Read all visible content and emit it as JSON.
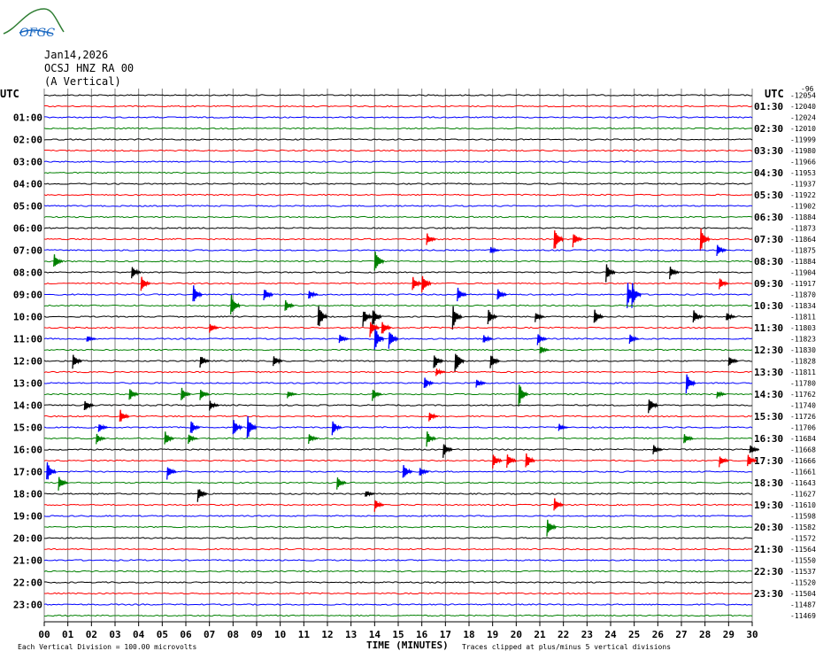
{
  "logo": {
    "text": "OFGC"
  },
  "header": {
    "date": "Jan14,2026",
    "station": "OCSJ HNZ RA 00",
    "channel": "(A Vertical)"
  },
  "left_axis_label": "UTC",
  "right_axis_label": "UTC",
  "top_right_tag": "-96",
  "colors": {
    "cycle": [
      "#000000",
      "#ff0000",
      "#0000ff",
      "#008000"
    ],
    "grid": "#808080"
  },
  "chart_data": {
    "type": "line",
    "title": "",
    "xlabel": "TIME (MINUTES)",
    "ylabel": "UTC",
    "xlim": [
      0,
      30
    ],
    "x_ticks": [
      "00",
      "01",
      "02",
      "03",
      "04",
      "05",
      "06",
      "07",
      "08",
      "09",
      "10",
      "11",
      "12",
      "13",
      "14",
      "15",
      "16",
      "17",
      "18",
      "19",
      "20",
      "21",
      "22",
      "23",
      "24",
      "25",
      "26",
      "27",
      "28",
      "29",
      "30"
    ],
    "left_hour_labels": [
      "01:00",
      "02:00",
      "03:00",
      "04:00",
      "05:00",
      "06:00",
      "07:00",
      "08:00",
      "09:00",
      "10:00",
      "11:00",
      "12:00",
      "13:00",
      "14:00",
      "15:00",
      "16:00",
      "17:00",
      "18:00",
      "19:00",
      "20:00",
      "21:00",
      "22:00",
      "23:00"
    ],
    "right_half_hour_labels": [
      "01:30",
      "02:30",
      "03:30",
      "04:30",
      "05:30",
      "06:30",
      "07:30",
      "08:30",
      "09:30",
      "10:30",
      "11:30",
      "12:30",
      "13:30",
      "14:30",
      "15:30",
      "16:30",
      "17:30",
      "18:30",
      "19:30",
      "20:30",
      "21:30",
      "22:30",
      "23:30"
    ],
    "trace_counts": [
      "-12054",
      "-12040",
      "-12024",
      "-12010",
      "-11999",
      "-11980",
      "-11966",
      "-11953",
      "-11937",
      "-11922",
      "-11902",
      "-11884",
      "-11873",
      "-11864",
      "-11875",
      "-11884",
      "-11904",
      "-11917",
      "-11870",
      "-11834",
      "-11811",
      "-11803",
      "-11823",
      "-11830",
      "-11828",
      "-11811",
      "-11780",
      "-11762",
      "-11740",
      "-11726",
      "-11706",
      "-11684",
      "-11668",
      "-11666",
      "-11661",
      "-11643",
      "-11627",
      "-11610",
      "-11598",
      "-11582",
      "-11572",
      "-11564",
      "-11550",
      "-11537",
      "-11520",
      "-11504",
      "-11487",
      "-11469"
    ],
    "events": [
      {
        "trace": 13,
        "x": 21.6,
        "amp": 1.0
      },
      {
        "trace": 13,
        "x": 22.4,
        "amp": 0.6
      },
      {
        "trace": 13,
        "x": 16.2,
        "amp": 0.5
      },
      {
        "trace": 13,
        "x": 27.8,
        "amp": 1.0
      },
      {
        "trace": 14,
        "x": 18.9,
        "amp": 0.3
      },
      {
        "trace": 14,
        "x": 28.5,
        "amp": 0.5
      },
      {
        "trace": 15,
        "x": 0.4,
        "amp": 0.6
      },
      {
        "trace": 15,
        "x": 14.0,
        "amp": 1.0
      },
      {
        "trace": 16,
        "x": 3.7,
        "amp": 0.5
      },
      {
        "trace": 16,
        "x": 23.8,
        "amp": 0.7
      },
      {
        "trace": 16,
        "x": 26.5,
        "amp": 0.5
      },
      {
        "trace": 17,
        "x": 4.1,
        "amp": 0.6
      },
      {
        "trace": 17,
        "x": 15.6,
        "amp": 0.6
      },
      {
        "trace": 17,
        "x": 16.0,
        "amp": 0.8
      },
      {
        "trace": 17,
        "x": 28.6,
        "amp": 0.5
      },
      {
        "trace": 18,
        "x": 6.3,
        "amp": 0.8
      },
      {
        "trace": 18,
        "x": 9.3,
        "amp": 0.6
      },
      {
        "trace": 18,
        "x": 11.2,
        "amp": 0.4
      },
      {
        "trace": 18,
        "x": 17.5,
        "amp": 0.6
      },
      {
        "trace": 18,
        "x": 19.2,
        "amp": 0.5
      },
      {
        "trace": 18,
        "x": 24.7,
        "amp": 1.0
      },
      {
        "trace": 18,
        "x": 24.9,
        "amp": 1.0
      },
      {
        "trace": 19,
        "x": 7.9,
        "amp": 1.0
      },
      {
        "trace": 19,
        "x": 10.2,
        "amp": 0.5
      },
      {
        "trace": 20,
        "x": 11.6,
        "amp": 1.0
      },
      {
        "trace": 20,
        "x": 13.5,
        "amp": 0.7
      },
      {
        "trace": 20,
        "x": 13.9,
        "amp": 0.8
      },
      {
        "trace": 20,
        "x": 17.3,
        "amp": 1.0
      },
      {
        "trace": 20,
        "x": 18.8,
        "amp": 0.6
      },
      {
        "trace": 20,
        "x": 20.8,
        "amp": 0.4
      },
      {
        "trace": 20,
        "x": 23.3,
        "amp": 0.6
      },
      {
        "trace": 20,
        "x": 27.5,
        "amp": 0.6
      },
      {
        "trace": 20,
        "x": 28.9,
        "amp": 0.4
      },
      {
        "trace": 21,
        "x": 7.0,
        "amp": 0.4
      },
      {
        "trace": 21,
        "x": 13.8,
        "amp": 0.7
      },
      {
        "trace": 21,
        "x": 14.3,
        "amp": 0.6
      },
      {
        "trace": 22,
        "x": 1.8,
        "amp": 0.3
      },
      {
        "trace": 22,
        "x": 12.5,
        "amp": 0.4
      },
      {
        "trace": 22,
        "x": 14.0,
        "amp": 1.0
      },
      {
        "trace": 22,
        "x": 14.6,
        "amp": 0.8
      },
      {
        "trace": 22,
        "x": 18.6,
        "amp": 0.4
      },
      {
        "trace": 22,
        "x": 20.9,
        "amp": 0.5
      },
      {
        "trace": 22,
        "x": 24.8,
        "amp": 0.4
      },
      {
        "trace": 23,
        "x": 21.0,
        "amp": 0.4
      },
      {
        "trace": 24,
        "x": 1.2,
        "amp": 0.6
      },
      {
        "trace": 24,
        "x": 6.6,
        "amp": 0.5
      },
      {
        "trace": 24,
        "x": 9.7,
        "amp": 0.5
      },
      {
        "trace": 24,
        "x": 16.5,
        "amp": 0.7
      },
      {
        "trace": 24,
        "x": 17.4,
        "amp": 1.0
      },
      {
        "trace": 24,
        "x": 18.9,
        "amp": 0.6
      },
      {
        "trace": 24,
        "x": 29.0,
        "amp": 0.5
      },
      {
        "trace": 25,
        "x": 16.6,
        "amp": 0.3
      },
      {
        "trace": 26,
        "x": 16.1,
        "amp": 0.5
      },
      {
        "trace": 26,
        "x": 18.3,
        "amp": 0.4
      },
      {
        "trace": 26,
        "x": 27.2,
        "amp": 0.8
      },
      {
        "trace": 27,
        "x": 3.6,
        "amp": 0.5
      },
      {
        "trace": 27,
        "x": 5.8,
        "amp": 0.6
      },
      {
        "trace": 27,
        "x": 6.6,
        "amp": 0.5
      },
      {
        "trace": 27,
        "x": 10.3,
        "amp": 0.3
      },
      {
        "trace": 27,
        "x": 13.9,
        "amp": 0.5
      },
      {
        "trace": 27,
        "x": 20.1,
        "amp": 1.0
      },
      {
        "trace": 27,
        "x": 28.5,
        "amp": 0.3
      },
      {
        "trace": 28,
        "x": 1.7,
        "amp": 0.5
      },
      {
        "trace": 28,
        "x": 7.0,
        "amp": 0.4
      },
      {
        "trace": 28,
        "x": 25.6,
        "amp": 0.7
      },
      {
        "trace": 29,
        "x": 3.2,
        "amp": 0.6
      },
      {
        "trace": 29,
        "x": 16.3,
        "amp": 0.4
      },
      {
        "trace": 30,
        "x": 2.3,
        "amp": 0.4
      },
      {
        "trace": 30,
        "x": 6.2,
        "amp": 0.6
      },
      {
        "trace": 30,
        "x": 8.0,
        "amp": 0.7
      },
      {
        "trace": 30,
        "x": 8.6,
        "amp": 1.0
      },
      {
        "trace": 30,
        "x": 12.2,
        "amp": 0.6
      },
      {
        "trace": 30,
        "x": 21.8,
        "amp": 0.3
      },
      {
        "trace": 31,
        "x": 2.2,
        "amp": 0.4
      },
      {
        "trace": 31,
        "x": 5.1,
        "amp": 0.6
      },
      {
        "trace": 31,
        "x": 6.1,
        "amp": 0.4
      },
      {
        "trace": 31,
        "x": 11.2,
        "amp": 0.4
      },
      {
        "trace": 31,
        "x": 16.2,
        "amp": 0.6
      },
      {
        "trace": 31,
        "x": 27.1,
        "amp": 0.5
      },
      {
        "trace": 32,
        "x": 16.9,
        "amp": 0.6
      },
      {
        "trace": 32,
        "x": 25.8,
        "amp": 0.4
      },
      {
        "trace": 32,
        "x": 29.9,
        "amp": 0.4
      },
      {
        "trace": 33,
        "x": 19.0,
        "amp": 0.6
      },
      {
        "trace": 33,
        "x": 19.6,
        "amp": 0.6
      },
      {
        "trace": 33,
        "x": 20.4,
        "amp": 0.7
      },
      {
        "trace": 33,
        "x": 28.6,
        "amp": 0.5
      },
      {
        "trace": 33,
        "x": 29.8,
        "amp": 0.6
      },
      {
        "trace": 34,
        "x": 0.1,
        "amp": 0.9
      },
      {
        "trace": 34,
        "x": 5.2,
        "amp": 0.6
      },
      {
        "trace": 34,
        "x": 15.2,
        "amp": 0.6
      },
      {
        "trace": 34,
        "x": 15.9,
        "amp": 0.4
      },
      {
        "trace": 35,
        "x": 0.6,
        "amp": 0.6
      },
      {
        "trace": 35,
        "x": 12.4,
        "amp": 0.5
      },
      {
        "trace": 36,
        "x": 6.5,
        "amp": 0.6
      },
      {
        "trace": 36,
        "x": 13.6,
        "amp": 0.3
      },
      {
        "trace": 37,
        "x": 14.0,
        "amp": 0.5
      },
      {
        "trace": 37,
        "x": 21.6,
        "amp": 0.6
      },
      {
        "trace": 39,
        "x": 21.3,
        "amp": 0.7
      }
    ]
  },
  "footer": {
    "left": "Each Vertical Division =  100.00 microvolts",
    "right": "Traces clipped at plus/minus 5 vertical divisions"
  }
}
